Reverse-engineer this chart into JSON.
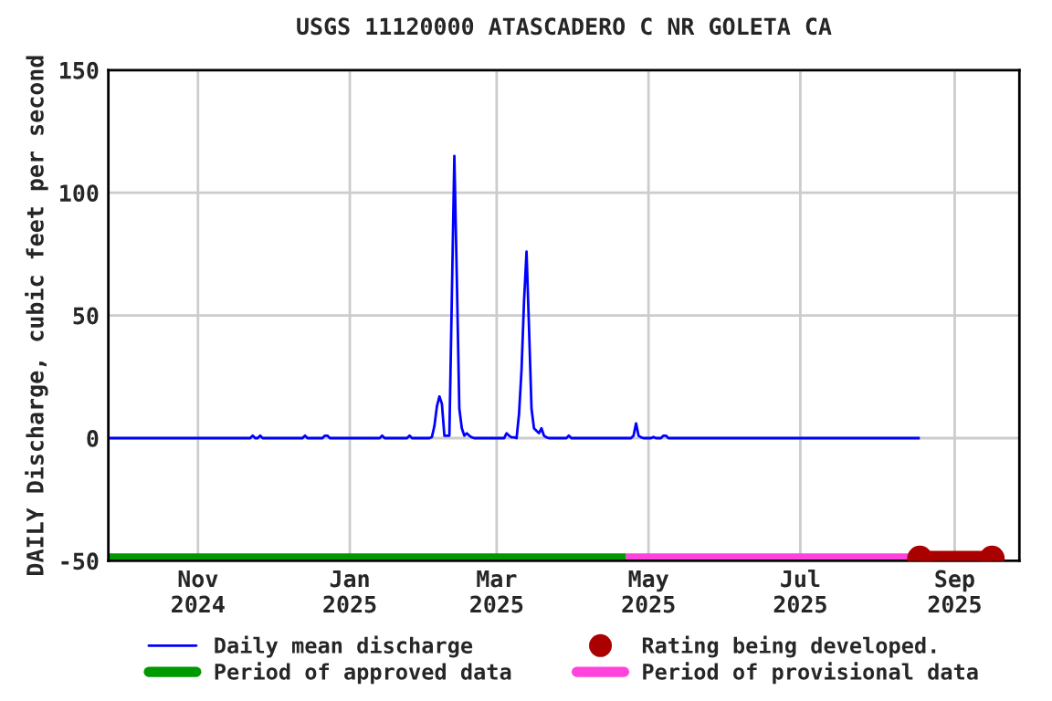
{
  "chart_data": {
    "type": "line",
    "title": "USGS 11120000 ATASCADERO C NR GOLETA CA",
    "ylabel": "DAILY Discharge, cubic feet per second",
    "xlim": [
      "2024-09-26",
      "2025-09-27"
    ],
    "ylim": [
      -50,
      150
    ],
    "yticks": [
      -50,
      0,
      50,
      100,
      150
    ],
    "xticks": [
      {
        "value": "2024-11-01",
        "label": "Nov\n2024"
      },
      {
        "value": "2025-01-01",
        "label": "Jan\n2025"
      },
      {
        "value": "2025-03-01",
        "label": "Mar\n2025"
      },
      {
        "value": "2025-05-01",
        "label": "May\n2025"
      },
      {
        "value": "2025-07-01",
        "label": "Jul\n2025"
      },
      {
        "value": "2025-09-01",
        "label": "Sep\n2025"
      }
    ],
    "grid": true,
    "legend": "bottom",
    "series": [
      {
        "name": "Daily mean discharge",
        "color": "#0000ff",
        "x": [
          "2024-09-26",
          "2024-11-22",
          "2024-11-23",
          "2024-11-24",
          "2024-11-25",
          "2024-11-26",
          "2024-11-27",
          "2024-12-13",
          "2024-12-14",
          "2024-12-15",
          "2024-12-21",
          "2024-12-22",
          "2024-12-23",
          "2024-12-24",
          "2025-01-13",
          "2025-01-14",
          "2025-01-15",
          "2025-01-24",
          "2025-01-25",
          "2025-01-26",
          "2025-02-02",
          "2025-02-03",
          "2025-02-04",
          "2025-02-05",
          "2025-02-06",
          "2025-02-07",
          "2025-02-08",
          "2025-02-09",
          "2025-02-10",
          "2025-02-11",
          "2025-02-12",
          "2025-02-13",
          "2025-02-14",
          "2025-02-15",
          "2025-02-16",
          "2025-02-17",
          "2025-02-18",
          "2025-02-19",
          "2025-02-20",
          "2025-03-04",
          "2025-03-05",
          "2025-03-06",
          "2025-03-07",
          "2025-03-08",
          "2025-03-09",
          "2025-03-10",
          "2025-03-11",
          "2025-03-12",
          "2025-03-13",
          "2025-03-14",
          "2025-03-15",
          "2025-03-16",
          "2025-03-17",
          "2025-03-18",
          "2025-03-19",
          "2025-03-20",
          "2025-03-21",
          "2025-03-22",
          "2025-03-29",
          "2025-03-30",
          "2025-03-31",
          "2025-04-24",
          "2025-04-25",
          "2025-04-26",
          "2025-04-27",
          "2025-04-28",
          "2025-04-29",
          "2025-05-02",
          "2025-05-03",
          "2025-05-04",
          "2025-05-06",
          "2025-05-07",
          "2025-05-08",
          "2025-05-09",
          "2025-08-18"
        ],
        "values": [
          0,
          0,
          1,
          0,
          0,
          1,
          0,
          0,
          1,
          0,
          0,
          1,
          1,
          0,
          0,
          1,
          0,
          0,
          1,
          0,
          0,
          0.5,
          5,
          13,
          17,
          14,
          1,
          1,
          1,
          58,
          115,
          65,
          12,
          4,
          1,
          2,
          1,
          0.3,
          0,
          0,
          2,
          1,
          0.3,
          0.3,
          0,
          10,
          28,
          56,
          76,
          45,
          12,
          4,
          3,
          2,
          4,
          1,
          0.3,
          0,
          0,
          1,
          0,
          0,
          1,
          6,
          1,
          0.3,
          0,
          0,
          0.5,
          0,
          0,
          1,
          1,
          0,
          0
        ]
      },
      {
        "name": "Rating being developed.",
        "color": "#aa0000",
        "marker": "circle",
        "x": [
          "2025-08-18",
          "2025-09-16"
        ],
        "values": [
          -49,
          -49
        ]
      },
      {
        "name": "Period of approved data",
        "color": "#009900",
        "x": [
          "2024-09-26",
          "2025-04-22"
        ],
        "values": [
          -49,
          -49
        ]
      },
      {
        "name": "Period of provisional data",
        "color": "#ff44dd",
        "x": [
          "2025-04-22",
          "2025-09-17"
        ],
        "values": [
          -49,
          -49
        ]
      }
    ]
  }
}
